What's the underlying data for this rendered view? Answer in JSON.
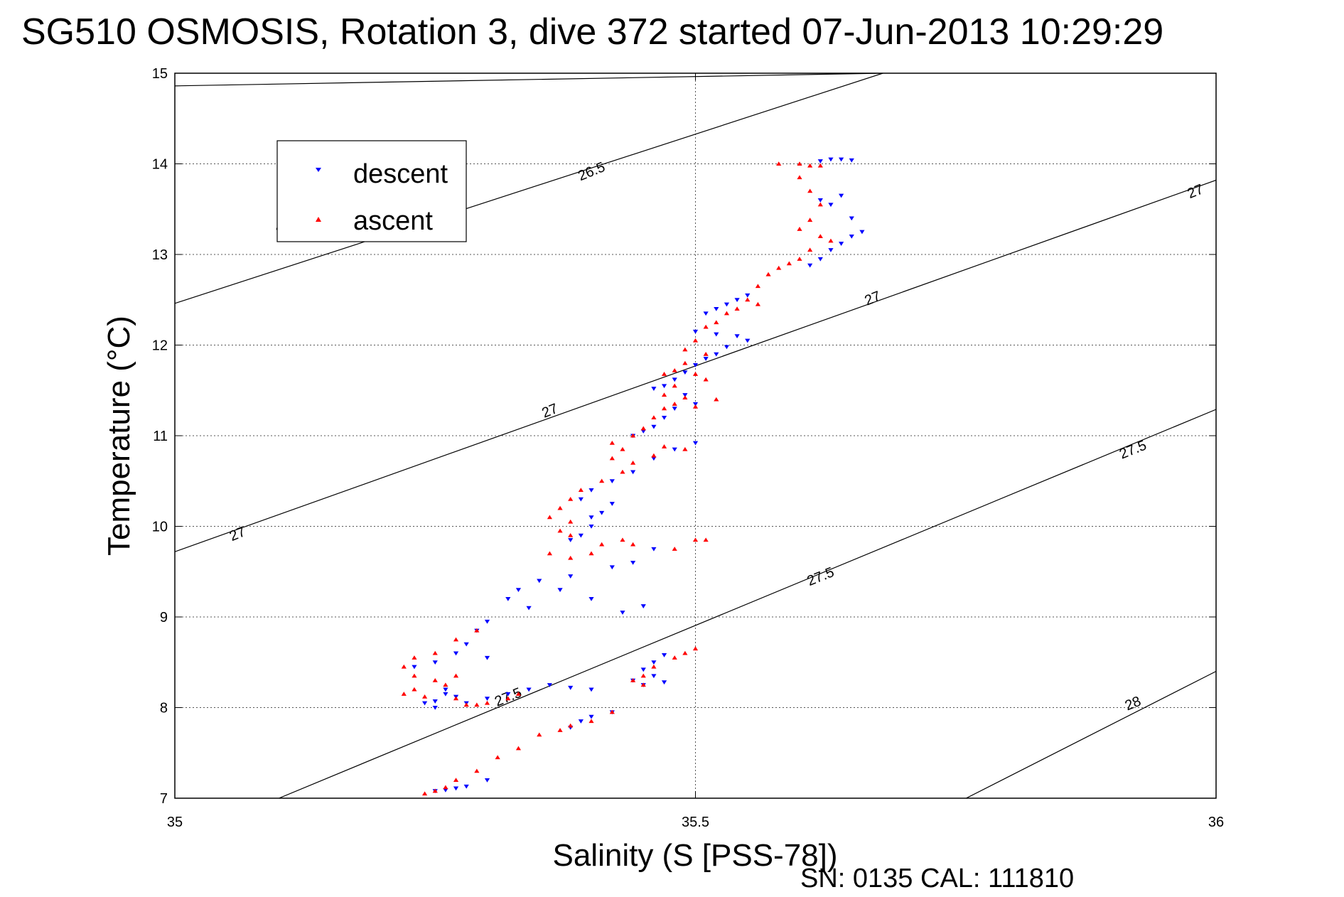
{
  "figure": {
    "title": "SG510 OSMOSIS, Rotation 3, dive 372 started 07-Jun-2013 10:29:29",
    "xlabel": "Salinity (S [PSS-78])",
    "ylabel": "Temperature (°C)",
    "footer": "SN: 0135  CAL: 111810"
  },
  "chart_data": {
    "type": "scatter",
    "title": "SG510 OSMOSIS, Rotation 3, dive 372 started 07-Jun-2013 10:29:29",
    "xlabel": "Salinity (S [PSS-78])",
    "ylabel": "Temperature (°C)",
    "xlim": [
      35,
      36
    ],
    "ylim": [
      7,
      15
    ],
    "x_ticks": [
      "35",
      "35.5",
      "36"
    ],
    "y_ticks": [
      "7",
      "8",
      "9",
      "10",
      "11",
      "12",
      "13",
      "14",
      "15"
    ],
    "grid": true,
    "grid_color": "#555555",
    "legend_position": "top-left",
    "series": [
      {
        "name": "descent",
        "marker": "triangle-down",
        "color": "#0000ff",
        "points": [
          [
            35.63,
            14.05
          ],
          [
            35.64,
            14.05
          ],
          [
            35.65,
            14.04
          ],
          [
            35.62,
            14.03
          ],
          [
            35.64,
            13.65
          ],
          [
            35.63,
            13.55
          ],
          [
            35.62,
            13.6
          ],
          [
            35.65,
            13.4
          ],
          [
            35.66,
            13.25
          ],
          [
            35.65,
            13.2
          ],
          [
            35.64,
            13.12
          ],
          [
            35.63,
            13.05
          ],
          [
            35.62,
            12.95
          ],
          [
            35.61,
            12.88
          ],
          [
            35.55,
            12.55
          ],
          [
            35.54,
            12.5
          ],
          [
            35.53,
            12.45
          ],
          [
            35.52,
            12.4
          ],
          [
            35.51,
            12.35
          ],
          [
            35.5,
            12.15
          ],
          [
            35.52,
            12.12
          ],
          [
            35.54,
            12.1
          ],
          [
            35.55,
            12.05
          ],
          [
            35.53,
            11.98
          ],
          [
            35.52,
            11.9
          ],
          [
            35.51,
            11.85
          ],
          [
            35.5,
            11.78
          ],
          [
            35.49,
            11.7
          ],
          [
            35.48,
            11.62
          ],
          [
            35.47,
            11.55
          ],
          [
            35.46,
            11.52
          ],
          [
            35.49,
            11.45
          ],
          [
            35.5,
            11.35
          ],
          [
            35.48,
            11.3
          ],
          [
            35.47,
            11.2
          ],
          [
            35.46,
            11.1
          ],
          [
            35.45,
            11.05
          ],
          [
            35.44,
            11.0
          ],
          [
            35.5,
            10.92
          ],
          [
            35.48,
            10.85
          ],
          [
            35.46,
            10.75
          ],
          [
            35.44,
            10.6
          ],
          [
            35.42,
            10.5
          ],
          [
            35.4,
            10.4
          ],
          [
            35.39,
            10.3
          ],
          [
            35.42,
            10.25
          ],
          [
            35.41,
            10.15
          ],
          [
            35.4,
            10.1
          ],
          [
            35.4,
            10.0
          ],
          [
            35.39,
            9.9
          ],
          [
            35.38,
            9.85
          ],
          [
            35.46,
            9.75
          ],
          [
            35.44,
            9.6
          ],
          [
            35.42,
            9.55
          ],
          [
            35.38,
            9.45
          ],
          [
            35.35,
            9.4
          ],
          [
            35.33,
            9.3
          ],
          [
            35.37,
            9.3
          ],
          [
            35.4,
            9.2
          ],
          [
            35.34,
            9.1
          ],
          [
            35.43,
            9.05
          ],
          [
            35.45,
            9.12
          ],
          [
            35.32,
            9.2
          ],
          [
            35.3,
            8.95
          ],
          [
            35.29,
            8.85
          ],
          [
            35.28,
            8.7
          ],
          [
            35.27,
            8.6
          ],
          [
            35.3,
            8.55
          ],
          [
            35.25,
            8.5
          ],
          [
            35.23,
            8.45
          ],
          [
            35.47,
            8.58
          ],
          [
            35.46,
            8.5
          ],
          [
            35.45,
            8.42
          ],
          [
            35.46,
            8.35
          ],
          [
            35.47,
            8.28
          ],
          [
            35.45,
            8.25
          ],
          [
            35.44,
            8.3
          ],
          [
            35.4,
            8.2
          ],
          [
            35.38,
            8.22
          ],
          [
            35.36,
            8.25
          ],
          [
            35.34,
            8.2
          ],
          [
            35.32,
            8.15
          ],
          [
            35.3,
            8.1
          ],
          [
            35.28,
            8.05
          ],
          [
            35.27,
            8.12
          ],
          [
            35.26,
            8.2
          ],
          [
            35.26,
            8.15
          ],
          [
            35.25,
            8.07
          ],
          [
            35.25,
            8.0
          ],
          [
            35.24,
            8.05
          ],
          [
            35.42,
            7.95
          ],
          [
            35.4,
            7.9
          ],
          [
            35.39,
            7.85
          ],
          [
            35.38,
            7.78
          ],
          [
            35.3,
            7.2
          ],
          [
            35.28,
            7.13
          ],
          [
            35.27,
            7.11
          ],
          [
            35.26,
            7.09
          ],
          [
            35.25,
            7.08
          ]
        ]
      },
      {
        "name": "ascent",
        "marker": "triangle-up",
        "color": "#ff0000",
        "points": [
          [
            35.58,
            14.0
          ],
          [
            35.6,
            14.0
          ],
          [
            35.61,
            13.98
          ],
          [
            35.62,
            13.98
          ],
          [
            35.6,
            13.85
          ],
          [
            35.61,
            13.7
          ],
          [
            35.62,
            13.55
          ],
          [
            35.61,
            13.38
          ],
          [
            35.6,
            13.28
          ],
          [
            35.62,
            13.2
          ],
          [
            35.63,
            13.15
          ],
          [
            35.61,
            13.05
          ],
          [
            35.6,
            12.95
          ],
          [
            35.59,
            12.9
          ],
          [
            35.58,
            12.85
          ],
          [
            35.57,
            12.78
          ],
          [
            35.56,
            12.65
          ],
          [
            35.55,
            12.5
          ],
          [
            35.56,
            12.45
          ],
          [
            35.54,
            12.4
          ],
          [
            35.53,
            12.35
          ],
          [
            35.52,
            12.25
          ],
          [
            35.51,
            12.2
          ],
          [
            35.5,
            12.05
          ],
          [
            35.49,
            11.95
          ],
          [
            35.51,
            11.9
          ],
          [
            35.49,
            11.8
          ],
          [
            35.48,
            11.72
          ],
          [
            35.47,
            11.68
          ],
          [
            35.5,
            11.68
          ],
          [
            35.51,
            11.62
          ],
          [
            35.48,
            11.55
          ],
          [
            35.47,
            11.45
          ],
          [
            35.49,
            11.42
          ],
          [
            35.52,
            11.4
          ],
          [
            35.48,
            11.35
          ],
          [
            35.47,
            11.3
          ],
          [
            35.5,
            11.32
          ],
          [
            35.46,
            11.2
          ],
          [
            35.45,
            11.08
          ],
          [
            35.44,
            11.0
          ],
          [
            35.42,
            10.92
          ],
          [
            35.43,
            10.85
          ],
          [
            35.47,
            10.88
          ],
          [
            35.49,
            10.85
          ],
          [
            35.46,
            10.78
          ],
          [
            35.42,
            10.75
          ],
          [
            35.44,
            10.7
          ],
          [
            35.43,
            10.6
          ],
          [
            35.41,
            10.5
          ],
          [
            35.39,
            10.4
          ],
          [
            35.38,
            10.3
          ],
          [
            35.37,
            10.2
          ],
          [
            35.36,
            10.1
          ],
          [
            35.38,
            10.05
          ],
          [
            35.37,
            9.95
          ],
          [
            35.38,
            9.9
          ],
          [
            35.41,
            9.8
          ],
          [
            35.43,
            9.85
          ],
          [
            35.44,
            9.8
          ],
          [
            35.5,
            9.85
          ],
          [
            35.51,
            9.85
          ],
          [
            35.48,
            9.75
          ],
          [
            35.4,
            9.7
          ],
          [
            35.38,
            9.65
          ],
          [
            35.36,
            9.7
          ],
          [
            35.29,
            8.85
          ],
          [
            35.27,
            8.75
          ],
          [
            35.25,
            8.6
          ],
          [
            35.23,
            8.55
          ],
          [
            35.22,
            8.45
          ],
          [
            35.23,
            8.35
          ],
          [
            35.25,
            8.3
          ],
          [
            35.27,
            8.35
          ],
          [
            35.26,
            8.25
          ],
          [
            35.23,
            8.2
          ],
          [
            35.22,
            8.15
          ],
          [
            35.24,
            8.12
          ],
          [
            35.27,
            8.1
          ],
          [
            35.28,
            8.03
          ],
          [
            35.29,
            8.03
          ],
          [
            35.3,
            8.05
          ],
          [
            35.32,
            8.1
          ],
          [
            35.33,
            8.15
          ],
          [
            35.5,
            8.65
          ],
          [
            35.49,
            8.6
          ],
          [
            35.48,
            8.55
          ],
          [
            35.46,
            8.45
          ],
          [
            35.45,
            8.35
          ],
          [
            35.44,
            8.3
          ],
          [
            35.45,
            8.25
          ],
          [
            35.42,
            7.95
          ],
          [
            35.4,
            7.85
          ],
          [
            35.38,
            7.8
          ],
          [
            35.37,
            7.75
          ],
          [
            35.35,
            7.7
          ],
          [
            35.33,
            7.55
          ],
          [
            35.31,
            7.45
          ],
          [
            35.29,
            7.3
          ],
          [
            35.27,
            7.2
          ],
          [
            35.26,
            7.12
          ],
          [
            35.25,
            7.08
          ],
          [
            35.24,
            7.05
          ]
        ]
      }
    ],
    "density_contours": [
      {
        "label": "26.5",
        "from": [
          35.0,
          14.86
        ],
        "to": [
          35.68,
          15.0
        ]
      },
      {
        "label": "26.5",
        "from": [
          35.0,
          12.46
        ],
        "to": [
          35.68,
          15.0
        ]
      },
      {
        "label": "27",
        "from": [
          35.0,
          9.72
        ],
        "to": [
          36.0,
          13.82
        ]
      },
      {
        "label": "27.5",
        "from": [
          35.1,
          7.0
        ],
        "to": [
          36.0,
          11.29
        ]
      },
      {
        "label": "28",
        "from": [
          35.76,
          7.0
        ],
        "to": [
          36.0,
          8.4
        ]
      }
    ],
    "contour_labels": [
      {
        "text": "26.5",
        "x": 35.11,
        "y": 13.3
      },
      {
        "text": "26.5",
        "x": 35.4,
        "y": 13.92
      },
      {
        "text": "27",
        "x": 35.06,
        "y": 9.92
      },
      {
        "text": "27",
        "x": 35.36,
        "y": 11.28
      },
      {
        "text": "27",
        "x": 35.67,
        "y": 12.52
      },
      {
        "text": "27",
        "x": 35.98,
        "y": 13.7
      },
      {
        "text": "27.5",
        "x": 35.32,
        "y": 8.12
      },
      {
        "text": "27.5",
        "x": 35.62,
        "y": 9.45
      },
      {
        "text": "27.5",
        "x": 35.92,
        "y": 10.85
      },
      {
        "text": "28",
        "x": 35.92,
        "y": 8.05
      }
    ]
  }
}
